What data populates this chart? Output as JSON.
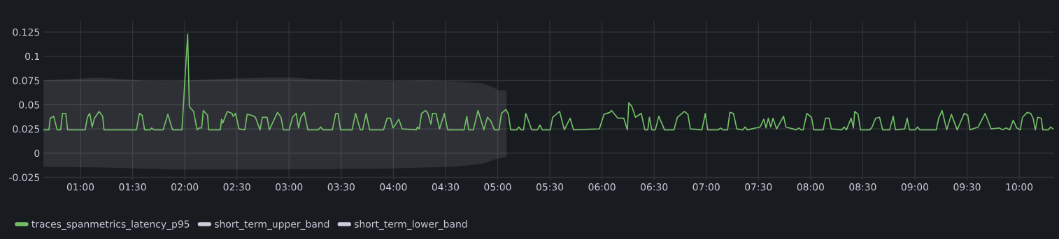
{
  "chart_data": {
    "type": "line",
    "xlim": [
      0.645,
      10.336
    ],
    "ylim": [
      -0.0275,
      0.1365
    ],
    "xticks": [
      {
        "value": 1,
        "label": "01:00"
      },
      {
        "value": 1.5,
        "label": "01:30"
      },
      {
        "value": 2,
        "label": "02:00"
      },
      {
        "value": 2.5,
        "label": "02:30"
      },
      {
        "value": 3,
        "label": "03:00"
      },
      {
        "value": 3.5,
        "label": "03:30"
      },
      {
        "value": 4,
        "label": "04:00"
      },
      {
        "value": 4.5,
        "label": "04:30"
      },
      {
        "value": 5,
        "label": "05:00"
      },
      {
        "value": 5.5,
        "label": "05:30"
      },
      {
        "value": 6,
        "label": "06:00"
      },
      {
        "value": 6.5,
        "label": "06:30"
      },
      {
        "value": 7,
        "label": "07:00"
      },
      {
        "value": 7.5,
        "label": "07:30"
      },
      {
        "value": 8,
        "label": "08:00"
      },
      {
        "value": 8.5,
        "label": "08:30"
      },
      {
        "value": 9,
        "label": "09:00"
      },
      {
        "value": 9.5,
        "label": "09:30"
      },
      {
        "value": 10,
        "label": "10:00"
      }
    ],
    "yticks": [
      -0.025,
      0,
      0.025,
      0.05,
      0.075,
      0.1,
      0.125
    ],
    "grid": true,
    "legend": "bottom left",
    "marker": "none",
    "line_style": "solid",
    "series": [
      {
        "name": "traces_spanmetrics_latency_p95",
        "color": "#73bf69",
        "x": [
          0.645,
          0.698,
          0.71,
          0.743,
          0.777,
          0.81,
          0.828,
          0.859,
          0.877,
          1.045,
          1.067,
          1.089,
          1.112,
          1.134,
          1.179,
          1.213,
          1.226,
          1.537,
          1.565,
          1.592,
          1.615,
          1.671,
          1.682,
          1.704,
          1.793,
          1.838,
          1.883,
          1.973,
          2.028,
          2.044,
          2.085,
          2.118,
          2.14,
          2.162,
          2.178,
          2.219,
          2.229,
          2.341,
          2.353,
          2.364,
          2.408,
          2.453,
          2.464,
          2.487,
          2.52,
          2.576,
          2.598,
          2.643,
          2.677,
          2.722,
          2.744,
          2.789,
          2.811,
          2.889,
          2.923,
          2.945,
          3.001,
          3.034,
          3.068,
          3.091,
          3.113,
          3.146,
          3.18,
          3.28,
          3.303,
          3.325,
          3.415,
          3.448,
          3.47,
          3.493,
          3.604,
          3.638,
          3.683,
          3.705,
          3.739,
          3.772,
          3.906,
          3.94,
          3.973,
          3.996,
          4.018,
          4.052,
          4.085,
          4.219,
          4.231,
          4.248,
          4.271,
          4.309,
          4.331,
          4.36,
          4.376,
          4.409,
          4.443,
          4.488,
          4.521,
          4.678,
          4.704,
          4.722,
          4.767,
          4.812,
          4.868,
          4.902,
          4.935,
          4.969,
          5.013,
          5.036,
          5.08,
          5.103,
          5.125,
          5.181,
          5.203,
          5.225,
          5.248,
          5.27,
          5.326,
          5.382,
          5.405,
          5.427,
          5.505,
          5.527,
          5.549,
          5.594,
          5.639,
          5.695,
          5.728,
          5.975,
          6.019,
          6.075,
          6.091,
          6.153,
          6.209,
          6.243,
          6.258,
          6.287,
          6.321,
          6.377,
          6.411,
          6.439,
          6.455,
          6.478,
          6.511,
          6.545,
          6.6,
          6.69,
          6.723,
          6.79,
          6.824,
          6.847,
          6.958,
          6.991,
          7.014,
          7.115,
          7.137,
          7.159,
          7.204,
          7.226,
          7.26,
          7.293,
          7.35,
          7.372,
          7.394,
          7.517,
          7.551,
          7.573,
          7.595,
          7.618,
          7.64,
          7.674,
          7.741,
          7.763,
          7.863,
          7.886,
          7.908,
          7.93,
          7.964,
          8.009,
          8.031,
          8.121,
          8.143,
          8.177,
          8.199,
          8.299,
          8.322,
          8.344,
          8.389,
          8.411,
          8.423,
          8.456,
          8.478,
          8.568,
          8.59,
          8.624,
          8.661,
          8.691,
          8.758,
          8.792,
          8.814,
          8.903,
          8.926,
          8.948,
          9.003,
          9.026,
          9.048,
          9.205,
          9.228,
          9.261,
          9.305,
          9.35,
          9.406,
          9.473,
          9.507,
          9.529,
          9.607,
          9.674,
          9.731,
          9.808,
          9.842,
          9.875,
          9.909,
          9.943,
          9.976,
          10.01,
          10.032,
          10.077,
          10.11,
          10.133,
          10.155,
          10.177,
          10.211,
          10.227,
          10.278,
          10.301,
          10.323
        ],
        "values": [
          0.024,
          0.024,
          0.036,
          0.038,
          0.024,
          0.024,
          0.041,
          0.041,
          0.024,
          0.024,
          0.037,
          0.041,
          0.027,
          0.036,
          0.043,
          0.038,
          0.024,
          0.024,
          0.041,
          0.039,
          0.024,
          0.024,
          0.026,
          0.024,
          0.024,
          0.04,
          0.024,
          0.024,
          0.123,
          0.048,
          0.043,
          0.024,
          0.026,
          0.026,
          0.044,
          0.039,
          0.024,
          0.024,
          0.035,
          0.031,
          0.043,
          0.041,
          0.038,
          0.041,
          0.025,
          0.024,
          0.04,
          0.039,
          0.037,
          0.024,
          0.037,
          0.037,
          0.024,
          0.042,
          0.037,
          0.024,
          0.024,
          0.037,
          0.041,
          0.026,
          0.037,
          0.042,
          0.024,
          0.024,
          0.027,
          0.024,
          0.024,
          0.041,
          0.041,
          0.024,
          0.024,
          0.041,
          0.024,
          0.024,
          0.041,
          0.024,
          0.024,
          0.036,
          0.036,
          0.026,
          0.029,
          0.035,
          0.025,
          0.024,
          0.027,
          0.025,
          0.041,
          0.044,
          0.041,
          0.03,
          0.041,
          0.041,
          0.025,
          0.041,
          0.024,
          0.024,
          0.038,
          0.024,
          0.024,
          0.044,
          0.024,
          0.037,
          0.033,
          0.024,
          0.024,
          0.041,
          0.045,
          0.04,
          0.024,
          0.024,
          0.027,
          0.024,
          0.024,
          0.041,
          0.024,
          0.024,
          0.029,
          0.024,
          0.024,
          0.037,
          0.039,
          0.043,
          0.024,
          0.036,
          0.024,
          0.025,
          0.04,
          0.042,
          0.044,
          0.036,
          0.036,
          0.024,
          0.052,
          0.048,
          0.037,
          0.041,
          0.024,
          0.024,
          0.037,
          0.024,
          0.024,
          0.038,
          0.024,
          0.024,
          0.037,
          0.043,
          0.04,
          0.025,
          0.024,
          0.041,
          0.024,
          0.024,
          0.026,
          0.024,
          0.024,
          0.042,
          0.041,
          0.025,
          0.024,
          0.027,
          0.024,
          0.027,
          0.035,
          0.026,
          0.036,
          0.027,
          0.036,
          0.025,
          0.038,
          0.027,
          0.024,
          0.026,
          0.024,
          0.024,
          0.041,
          0.037,
          0.024,
          0.024,
          0.036,
          0.036,
          0.025,
          0.024,
          0.027,
          0.024,
          0.036,
          0.026,
          0.043,
          0.04,
          0.024,
          0.024,
          0.027,
          0.036,
          0.037,
          0.024,
          0.024,
          0.038,
          0.024,
          0.025,
          0.036,
          0.024,
          0.024,
          0.027,
          0.024,
          0.024,
          0.036,
          0.044,
          0.024,
          0.04,
          0.024,
          0.041,
          0.039,
          0.024,
          0.027,
          0.041,
          0.025,
          0.026,
          0.024,
          0.026,
          0.024,
          0.034,
          0.026,
          0.024,
          0.037,
          0.042,
          0.041,
          0.036,
          0.024,
          0.037,
          0.036,
          0.024,
          0.024,
          0.027,
          0.025
        ]
      },
      {
        "name": "short_term_upper_band",
        "type": "area",
        "color": "#ccccdc",
        "x": [
          0.645,
          0.832,
          1.168,
          1.335,
          1.57,
          1.771,
          2.04,
          2.442,
          2.777,
          3.046,
          3.18,
          3.582,
          3.985,
          4.32,
          4.588,
          4.857,
          4.957,
          5.004,
          5.085
        ],
        "values": [
          0.075,
          0.076,
          0.078,
          0.077,
          0.075,
          0.074,
          0.075,
          0.077,
          0.078,
          0.078,
          0.077,
          0.075,
          0.074,
          0.075,
          0.074,
          0.072,
          0.068,
          0.065,
          0.065
        ]
      },
      {
        "name": "short_term_lower_band",
        "type": "area",
        "color": "#ccccdc",
        "x": [
          0.645,
          1.235,
          1.905,
          2.912,
          3.918,
          4.588,
          4.857,
          4.99,
          5.085
        ],
        "values": [
          -0.014,
          -0.015,
          -0.017,
          -0.017,
          -0.016,
          -0.014,
          -0.011,
          -0.006,
          -0.004
        ]
      }
    ]
  }
}
